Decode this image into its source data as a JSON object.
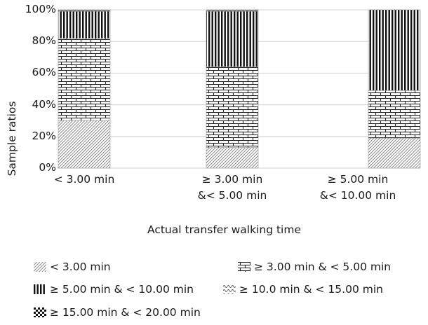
{
  "chart_data": {
    "type": "bar",
    "stacked": true,
    "xlabel": "Actual transfer walking time",
    "ylabel": "Sample ratios",
    "ylim": [
      0,
      100
    ],
    "yticks": [
      "0%",
      "20%",
      "40%",
      "60%",
      "80%",
      "100%"
    ],
    "categories": [
      {
        "line1": "< 3.00 min",
        "line2": ""
      },
      {
        "line1": "≥ 3.00 min",
        "line2": "&< 5.00 min"
      },
      {
        "line1": "≥ 5.00 min",
        "line2": "&< 10.00 min"
      }
    ],
    "series": [
      {
        "name": "< 3.00 min",
        "pattern": "diag-dense",
        "values": [
          30,
          13,
          19
        ]
      },
      {
        "name": "≥ 3.00 min & < 5.00 min",
        "pattern": "brick",
        "values": [
          52,
          51,
          30
        ]
      },
      {
        "name": "≥ 5.00 min & < 10.00 min",
        "pattern": "vertical",
        "values": [
          17,
          35,
          51
        ]
      },
      {
        "name": "≥ 10.0 min & < 15.00 min",
        "pattern": "wave",
        "values": [
          0,
          0,
          0
        ]
      },
      {
        "name": "≥ 15.00 min & < 20.00 min",
        "pattern": "checker",
        "values": [
          1,
          1,
          0
        ]
      }
    ],
    "grid": true,
    "legend_position": "bottom"
  },
  "legend": [
    {
      "label": "< 3.00 min",
      "icon": "diag-dense-swatch-icon"
    },
    {
      "label": "≥ 3.00 min & < 5.00 min",
      "icon": "brick-swatch-icon"
    },
    {
      "label": "≥ 5.00 min & < 10.00 min",
      "icon": "vertical-swatch-icon"
    },
    {
      "label": "≥ 10.0 min & < 15.00 min",
      "icon": "wave-swatch-icon"
    },
    {
      "label": "≥ 15.00 min & < 20.00 min",
      "icon": "checker-swatch-icon"
    }
  ]
}
